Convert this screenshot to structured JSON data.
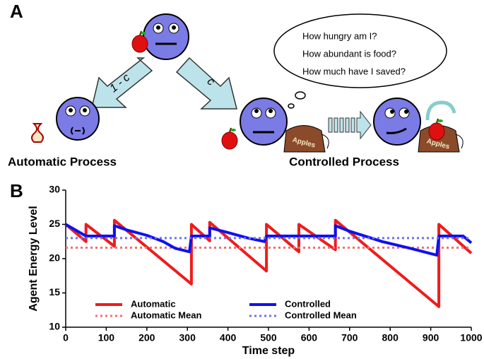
{
  "panel_a": {
    "label": "A",
    "left_caption": "Automatic Process",
    "right_caption": "Controlled Process",
    "left_arrow": "1 - c",
    "right_arrow": "c",
    "thoughts": [
      "How hungry am I?",
      "How abundant is food?",
      "How much have I saved?"
    ],
    "bag_label": "Apples"
  },
  "chart_data": {
    "type": "line",
    "panel_label": "B",
    "x_label": "Time step",
    "y_label": "Agent Energy Level",
    "xlim": [
      0,
      1000
    ],
    "ylim": [
      10,
      30
    ],
    "xticks": [
      0,
      100,
      200,
      300,
      400,
      500,
      600,
      700,
      800,
      900,
      1000
    ],
    "yticks": [
      10,
      15,
      20,
      25,
      30
    ],
    "series": [
      {
        "name": "Automatic",
        "color": "#ee1c1c",
        "style": "solid",
        "x": [
          0,
          50,
          50,
          120,
          120,
          310,
          310,
          355,
          355,
          495,
          495,
          575,
          575,
          665,
          665,
          920,
          920,
          1000
        ],
        "values": [
          25,
          22.5,
          25,
          21.8,
          25.6,
          16.3,
          25,
          22.6,
          25.3,
          18.2,
          25,
          21,
          25,
          21.3,
          25.6,
          13,
          25,
          20.8
        ]
      },
      {
        "name": "Automatic Mean",
        "color": "#f07070",
        "style": "dotted",
        "x": [
          0,
          1000
        ],
        "values": [
          21.6,
          21.6
        ]
      },
      {
        "name": "Controlled",
        "color": "#1010ee",
        "style": "solid",
        "x": [
          0,
          50,
          120,
          120,
          150,
          200,
          240,
          270,
          305,
          310,
          355,
          355,
          400,
          450,
          490,
          495,
          665,
          665,
          700,
          780,
          850,
          915,
          920,
          980,
          1000
        ],
        "values": [
          25,
          23.3,
          23.3,
          24.8,
          24.2,
          23.4,
          22.5,
          21.5,
          21,
          23.3,
          23.3,
          24.5,
          23.8,
          23,
          22.5,
          23.3,
          23.3,
          24.8,
          24,
          22.5,
          21.5,
          20.5,
          23.3,
          23.3,
          22.3
        ]
      },
      {
        "name": "Controlled Mean",
        "color": "#7070ee",
        "style": "dotted",
        "x": [
          0,
          1000
        ],
        "values": [
          23,
          23
        ]
      }
    ]
  }
}
